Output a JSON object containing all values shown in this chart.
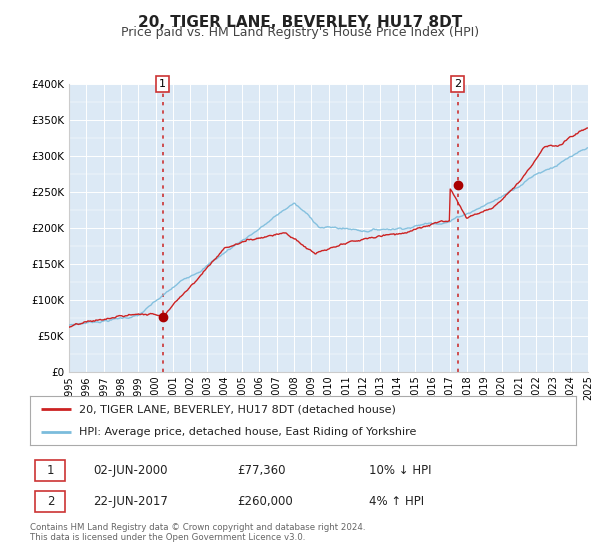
{
  "title": "20, TIGER LANE, BEVERLEY, HU17 8DT",
  "subtitle": "Price paid vs. HM Land Registry's House Price Index (HPI)",
  "title_fontsize": 11,
  "subtitle_fontsize": 9,
  "background_color": "#ffffff",
  "plot_bg_color": "#dce9f5",
  "grid_color": "#ffffff",
  "sale1_date": 2000.42,
  "sale1_price": 77360,
  "sale1_label": "1",
  "sale2_date": 2017.47,
  "sale2_price": 260000,
  "sale2_label": "2",
  "vline_color": "#cc3333",
  "sale_marker_color": "#aa0000",
  "hpi_line_color": "#7bbcdc",
  "price_line_color": "#cc2222",
  "xlim": [
    1995,
    2025
  ],
  "ylim": [
    0,
    400000
  ],
  "yticks": [
    0,
    50000,
    100000,
    150000,
    200000,
    250000,
    300000,
    350000,
    400000
  ],
  "ytick_labels": [
    "£0",
    "£50K",
    "£100K",
    "£150K",
    "£200K",
    "£250K",
    "£300K",
    "£350K",
    "£400K"
  ],
  "xticks": [
    1995,
    1996,
    1997,
    1998,
    1999,
    2000,
    2001,
    2002,
    2003,
    2004,
    2005,
    2006,
    2007,
    2008,
    2009,
    2010,
    2011,
    2012,
    2013,
    2014,
    2015,
    2016,
    2017,
    2018,
    2019,
    2020,
    2021,
    2022,
    2023,
    2024,
    2025
  ],
  "legend_price_label": "20, TIGER LANE, BEVERLEY, HU17 8DT (detached house)",
  "legend_hpi_label": "HPI: Average price, detached house, East Riding of Yorkshire",
  "note_line1": "Contains HM Land Registry data © Crown copyright and database right 2024.",
  "note_line2": "This data is licensed under the Open Government Licence v3.0.",
  "table_row1": [
    "1",
    "02-JUN-2000",
    "£77,360",
    "10% ↓ HPI"
  ],
  "table_row2": [
    "2",
    "22-JUN-2017",
    "£260,000",
    "4% ↑ HPI"
  ]
}
